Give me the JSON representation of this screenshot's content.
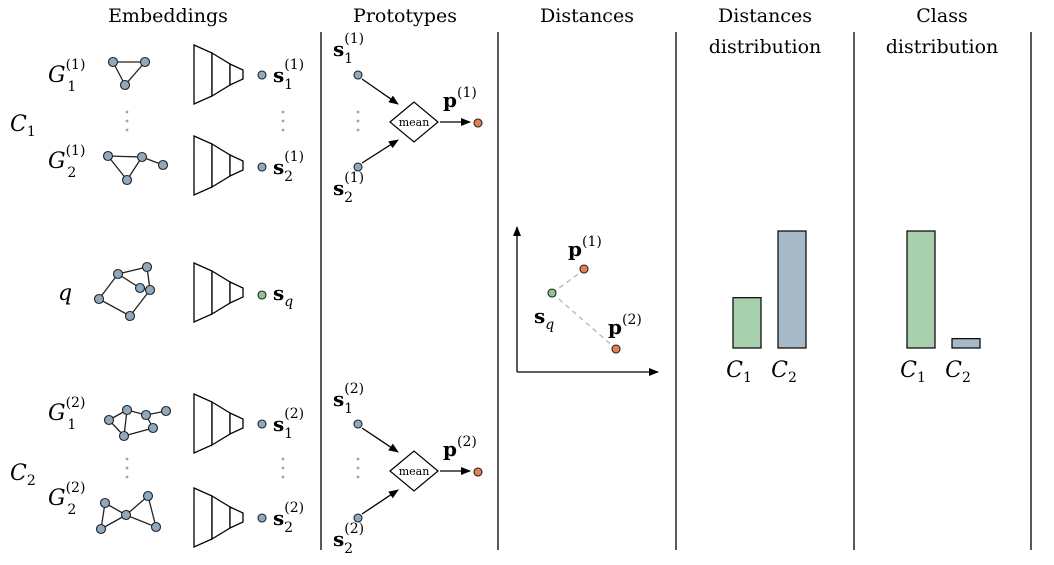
{
  "headers": {
    "embeddings": "Embeddings",
    "prototypes": "Prototypes",
    "distances": "Distances",
    "distances_distribution": [
      "Distances",
      "distribution"
    ],
    "class_distribution": [
      "Class",
      "distribution"
    ]
  },
  "classes": {
    "c1": {
      "base": "C",
      "sub": "1"
    },
    "c2": {
      "base": "C",
      "sub": "2"
    }
  },
  "graph_labels": {
    "g11": {
      "base": "G",
      "sub": "1",
      "sup": "(1)"
    },
    "g21": {
      "base": "G",
      "sub": "2",
      "sup": "(1)"
    },
    "q": "q",
    "g12": {
      "base": "G",
      "sub": "1",
      "sup": "(2)"
    },
    "g22": {
      "base": "G",
      "sub": "2",
      "sup": "(2)"
    }
  },
  "embeddings": {
    "s11": {
      "base": "s",
      "sub": "1",
      "sup": "(1)"
    },
    "s21": {
      "base": "s",
      "sub": "2",
      "sup": "(1)"
    },
    "sq": {
      "base": "s",
      "sub": "q"
    },
    "s12": {
      "base": "s",
      "sub": "1",
      "sup": "(2)"
    },
    "s22": {
      "base": "s",
      "sub": "2",
      "sup": "(2)"
    }
  },
  "prototypes": {
    "mean_label": "mean",
    "p1": {
      "base": "p",
      "sup": "(1)"
    },
    "p2": {
      "base": "p",
      "sup": "(2)"
    }
  },
  "distances_distribution": {
    "type": "bar",
    "categories": [
      "C1",
      "C2"
    ],
    "values": [
      0.43,
      1.0
    ],
    "colors": [
      "#a8cfae",
      "#a7b8c6"
    ]
  },
  "class_distribution": {
    "type": "bar",
    "categories": [
      "C1",
      "C2"
    ],
    "values": [
      1.0,
      0.08
    ],
    "colors": [
      "#a8cfae",
      "#a7b8c6"
    ]
  },
  "colors": {
    "support_node": "#8fa9c0",
    "query_node": "#8cc78b",
    "prototype_node": "#e08157"
  }
}
